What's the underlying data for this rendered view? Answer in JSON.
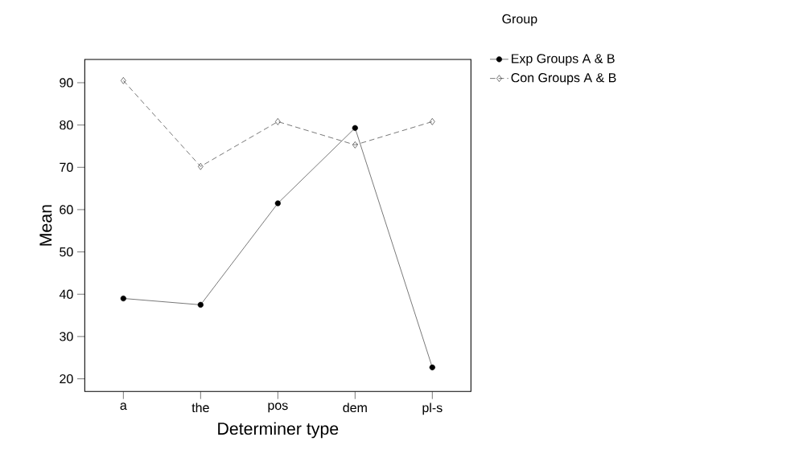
{
  "chart_data": {
    "type": "line",
    "xlabel": "Determiner type",
    "ylabel": "Mean",
    "legend_title": "Group",
    "categories": [
      "a",
      "the",
      "pos",
      "dem",
      "pl-s"
    ],
    "series": [
      {
        "name": "Exp Groups A & B",
        "color": "#000000",
        "values": [
          39.0,
          37.5,
          61.5,
          79.3,
          22.7
        ],
        "marker": "circle",
        "line_style": "solid"
      },
      {
        "name": "Con Groups A & B",
        "color": "#000000",
        "values": [
          90.5,
          70.2,
          80.8,
          75.3,
          80.8
        ],
        "marker": "diamond",
        "line_style": "dashed"
      }
    ],
    "ylim": [
      17,
      95.5
    ],
    "yticks": [
      20,
      30,
      40,
      50,
      60,
      70,
      80,
      90
    ],
    "grid": false,
    "legend": "top right"
  }
}
